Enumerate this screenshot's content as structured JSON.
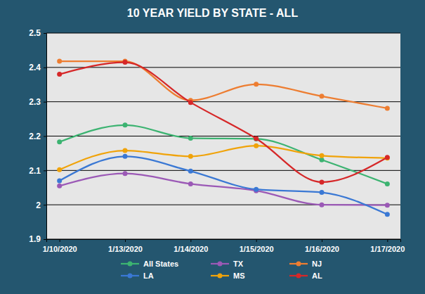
{
  "chart_data": {
    "type": "line",
    "title": "10 YEAR YIELD BY STATE - ALL",
    "categories": [
      "1/10/2020",
      "1/13/2020",
      "1/14/2020",
      "1/15/2020",
      "1/16/2020",
      "1/17/2020"
    ],
    "series": [
      {
        "name": "All States",
        "color": "#3cb371",
        "marker": "circle",
        "values": [
          2.183,
          2.232,
          2.194,
          2.192,
          2.131,
          2.061
        ]
      },
      {
        "name": "TX",
        "color": "#9b59b6",
        "marker": "circle",
        "values": [
          2.055,
          2.091,
          2.061,
          2.041,
          2.0,
          1.999
        ]
      },
      {
        "name": "NJ",
        "color": "#ed7d31",
        "marker": "circle",
        "values": [
          2.418,
          2.418,
          2.304,
          2.351,
          2.316,
          2.281
        ]
      },
      {
        "name": "LA",
        "color": "#3a78d4",
        "marker": "circle",
        "values": [
          2.07,
          2.141,
          2.098,
          2.045,
          2.036,
          1.972
        ]
      },
      {
        "name": "MS",
        "color": "#f0a30a",
        "marker": "circle",
        "values": [
          2.102,
          2.158,
          2.141,
          2.172,
          2.143,
          2.136
        ]
      },
      {
        "name": "AL",
        "color": "#d62728",
        "marker": "circle",
        "values": [
          2.38,
          2.415,
          2.298,
          2.193,
          2.066,
          2.138
        ]
      }
    ],
    "ylim": [
      1.9,
      2.5
    ],
    "yticks": [
      1.9,
      2,
      2.1,
      2.2,
      2.3,
      2.4,
      2.5
    ],
    "grid": true,
    "legend": "bottom"
  }
}
